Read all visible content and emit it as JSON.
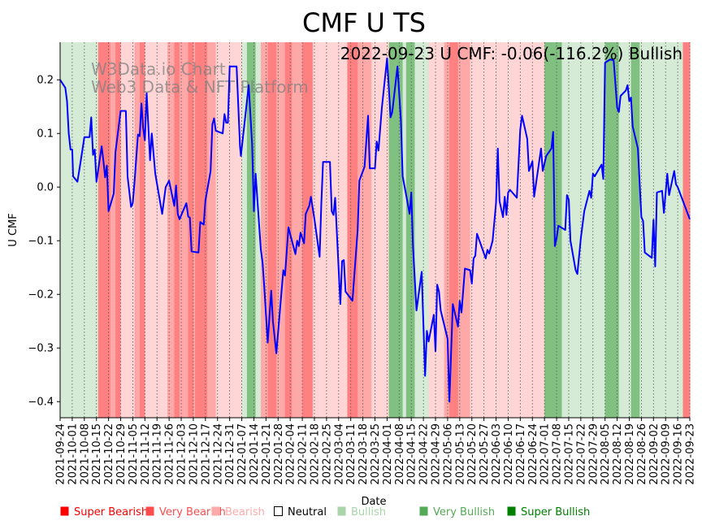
{
  "chart_data": {
    "type": "line",
    "title": "CMF U TS",
    "annotation": "2022-09-23 U CMF: -0.06(-116.2%) Bullish",
    "watermark": [
      "W3Data.io Chart",
      "Web3 Data & NFT Platform"
    ],
    "xlabel": "Date",
    "ylabel": "U CMF",
    "x_start_date": "2021-09-24",
    "x_range_days": [
      0,
      364
    ],
    "ylim": [
      -0.43,
      0.27
    ],
    "y_ticks": [
      0.2,
      0.1,
      0.0,
      -0.1,
      -0.2,
      -0.3,
      -0.4
    ],
    "y_tick_labels": [
      "0.2",
      "0.1",
      "0.0",
      "−0.1",
      "−0.2",
      "−0.3",
      "−0.4"
    ],
    "x_tick_labels": [
      "2021-09-24",
      "2021-10-01",
      "2021-10-08",
      "2021-10-15",
      "2021-10-22",
      "2021-10-29",
      "2021-11-05",
      "2021-11-12",
      "2021-11-19",
      "2021-11-26",
      "2021-12-03",
      "2021-12-10",
      "2021-12-17",
      "2021-12-24",
      "2021-12-31",
      "2022-01-07",
      "2022-01-14",
      "2022-01-21",
      "2022-01-28",
      "2022-02-04",
      "2022-02-11",
      "2022-02-18",
      "2022-02-25",
      "2022-03-04",
      "2022-03-11",
      "2022-03-18",
      "2022-03-25",
      "2022-04-01",
      "2022-04-08",
      "2022-04-15",
      "2022-04-22",
      "2022-04-29",
      "2022-05-06",
      "2022-05-13",
      "2022-05-20",
      "2022-05-27",
      "2022-06-03",
      "2022-06-10",
      "2022-06-17",
      "2022-06-24",
      "2022-07-01",
      "2022-07-08",
      "2022-07-15",
      "2022-07-22",
      "2022-07-29",
      "2022-08-05",
      "2022-08-12",
      "2022-08-19",
      "2022-08-26",
      "2022-09-02",
      "2022-09-09",
      "2022-09-16",
      "2022-09-23"
    ],
    "grid": "vertical dotted",
    "series": [
      {
        "name": "U CMF",
        "color": "#0000ff",
        "points": [
          [
            0,
            0.2
          ],
          [
            3,
            0.185
          ],
          [
            4,
            0.16
          ],
          [
            5,
            0.1
          ],
          [
            6,
            0.07
          ],
          [
            7,
            0.07
          ],
          [
            7.5,
            0.02
          ],
          [
            10,
            0.01
          ],
          [
            12,
            0.05
          ],
          [
            14,
            0.093
          ],
          [
            17,
            0.093
          ],
          [
            18,
            0.13
          ],
          [
            19,
            0.06
          ],
          [
            20,
            0.07
          ],
          [
            21,
            0.01
          ],
          [
            24,
            0.076
          ],
          [
            25,
            0.05
          ],
          [
            26,
            0.018
          ],
          [
            27,
            0.04
          ],
          [
            28,
            -0.045
          ],
          [
            31,
            -0.012
          ],
          [
            32,
            0.065
          ],
          [
            35,
            0.142
          ],
          [
            38,
            0.142
          ],
          [
            39,
            0.02
          ],
          [
            41,
            -0.037
          ],
          [
            42,
            -0.03
          ],
          [
            43,
            0.01
          ],
          [
            45,
            0.098
          ],
          [
            46,
            0.095
          ],
          [
            47,
            0.156
          ],
          [
            48,
            0.11
          ],
          [
            49,
            0.087
          ],
          [
            50,
            0.175
          ],
          [
            52,
            0.05
          ],
          [
            53,
            0.1
          ],
          [
            55,
            0.025
          ],
          [
            59,
            -0.05
          ],
          [
            61,
            0.0
          ],
          [
            63,
            0.012
          ],
          [
            66,
            -0.035
          ],
          [
            67,
            0.003
          ],
          [
            68,
            -0.05
          ],
          [
            69,
            -0.06
          ],
          [
            73,
            -0.03
          ],
          [
            74,
            -0.055
          ],
          [
            75,
            -0.057
          ],
          [
            76,
            -0.12
          ],
          [
            80,
            -0.122
          ],
          [
            81,
            -0.065
          ],
          [
            83,
            -0.07
          ],
          [
            84,
            -0.025
          ],
          [
            87,
            0.03
          ],
          [
            88,
            0.117
          ],
          [
            89,
            0.128
          ],
          [
            90,
            0.105
          ],
          [
            94,
            0.1
          ],
          [
            95,
            0.136
          ],
          [
            96,
            0.12
          ],
          [
            97,
            0.12
          ],
          [
            98,
            0.225
          ],
          [
            102,
            0.225
          ],
          [
            104,
            0.076
          ],
          [
            104.5,
            0.058
          ],
          [
            109,
            0.19
          ],
          [
            111,
            0.08
          ],
          [
            112,
            -0.045
          ],
          [
            113,
            0.025
          ],
          [
            116,
            -0.116
          ],
          [
            117,
            -0.14
          ],
          [
            118,
            -0.185
          ],
          [
            120,
            -0.29
          ],
          [
            122,
            -0.193
          ],
          [
            123,
            -0.25
          ],
          [
            125,
            -0.31
          ],
          [
            129,
            -0.155
          ],
          [
            130,
            -0.165
          ],
          [
            132,
            -0.075
          ],
          [
            136,
            -0.125
          ],
          [
            137,
            -0.1
          ],
          [
            138,
            -0.11
          ],
          [
            139,
            -0.085
          ],
          [
            141,
            -0.105
          ],
          [
            142,
            -0.05
          ],
          [
            144,
            -0.035
          ],
          [
            145,
            -0.018
          ],
          [
            147,
            -0.06
          ],
          [
            150,
            -0.13
          ],
          [
            151,
            -0.03
          ],
          [
            152,
            0.047
          ],
          [
            156,
            0.047
          ],
          [
            157,
            -0.045
          ],
          [
            158,
            -0.052
          ],
          [
            159,
            -0.02
          ],
          [
            162,
            -0.218
          ],
          [
            163,
            -0.138
          ],
          [
            164,
            -0.136
          ],
          [
            165,
            -0.195
          ],
          [
            169,
            -0.212
          ],
          [
            172,
            -0.08
          ],
          [
            173,
            0.012
          ],
          [
            176,
            0.038
          ],
          [
            178,
            0.133
          ],
          [
            179,
            0.035
          ],
          [
            182,
            0.035
          ],
          [
            183,
            0.085
          ],
          [
            184,
            0.068
          ],
          [
            186,
            0.148
          ],
          [
            189,
            0.24
          ],
          [
            191,
            0.13
          ],
          [
            192,
            0.14
          ],
          [
            195,
            0.225
          ],
          [
            197,
            0.125
          ],
          [
            198,
            0.02
          ],
          [
            200,
            -0.014
          ],
          [
            202,
            -0.05
          ],
          [
            203,
            -0.01
          ],
          [
            204,
            -0.11
          ],
          [
            206,
            -0.23
          ],
          [
            209,
            -0.158
          ],
          [
            211,
            -0.352
          ],
          [
            212,
            -0.268
          ],
          [
            213,
            -0.288
          ],
          [
            216,
            -0.238
          ],
          [
            217,
            -0.306
          ],
          [
            218,
            -0.182
          ],
          [
            219,
            -0.195
          ],
          [
            220,
            -0.23
          ],
          [
            224,
            -0.283
          ],
          [
            225,
            -0.4
          ],
          [
            227,
            -0.218
          ],
          [
            230,
            -0.26
          ],
          [
            231,
            -0.212
          ],
          [
            232,
            -0.234
          ],
          [
            234,
            -0.152
          ],
          [
            237,
            -0.155
          ],
          [
            238,
            -0.18
          ],
          [
            239,
            -0.133
          ],
          [
            240,
            -0.128
          ],
          [
            241,
            -0.087
          ],
          [
            246,
            -0.133
          ],
          [
            247,
            -0.117
          ],
          [
            248,
            -0.124
          ],
          [
            250,
            -0.1
          ],
          [
            252,
            -0.03
          ],
          [
            253,
            0.072
          ],
          [
            254,
            -0.026
          ],
          [
            256,
            -0.056
          ],
          [
            257,
            -0.018
          ],
          [
            258,
            -0.052
          ],
          [
            259,
            -0.01
          ],
          [
            260,
            -0.005
          ],
          [
            264,
            -0.02
          ],
          [
            266,
            0.107
          ],
          [
            267,
            0.133
          ],
          [
            270,
            0.09
          ],
          [
            271,
            0.03
          ],
          [
            273,
            0.048
          ],
          [
            274,
            -0.018
          ],
          [
            278,
            0.072
          ],
          [
            279,
            0.03
          ],
          [
            281,
            0.058
          ],
          [
            284,
            0.072
          ],
          [
            285,
            0.103
          ],
          [
            286,
            -0.11
          ],
          [
            287,
            -0.095
          ],
          [
            288,
            -0.072
          ],
          [
            292,
            -0.08
          ],
          [
            293,
            -0.015
          ],
          [
            294,
            -0.023
          ],
          [
            295,
            -0.1
          ],
          [
            298,
            -0.155
          ],
          [
            299,
            -0.162
          ],
          [
            301,
            -0.095
          ],
          [
            303,
            -0.045
          ],
          [
            306,
            -0.007
          ],
          [
            307,
            -0.02
          ],
          [
            308,
            0.025
          ],
          [
            309,
            0.02
          ],
          [
            313,
            0.042
          ],
          [
            314,
            0.015
          ],
          [
            315,
            0.232
          ],
          [
            318,
            0.238
          ],
          [
            320,
            0.236
          ],
          [
            322,
            0.148
          ],
          [
            323,
            0.14
          ],
          [
            324,
            0.17
          ],
          [
            327,
            0.18
          ],
          [
            328,
            0.19
          ],
          [
            329,
            0.16
          ],
          [
            330,
            0.167
          ],
          [
            331,
            0.113
          ],
          [
            334,
            0.072
          ],
          [
            336,
            -0.056
          ],
          [
            337,
            -0.063
          ],
          [
            338,
            -0.122
          ],
          [
            342,
            -0.132
          ],
          [
            343,
            -0.061
          ],
          [
            344,
            -0.148
          ],
          [
            345,
            -0.01
          ],
          [
            348,
            -0.007
          ],
          [
            349,
            -0.048
          ],
          [
            351,
            0.025
          ],
          [
            352,
            -0.015
          ],
          [
            354,
            0.015
          ],
          [
            355,
            0.03
          ],
          [
            356,
            0.005
          ],
          [
            357,
            0.0
          ],
          [
            364,
            -0.06
          ]
        ]
      }
    ],
    "bands": [
      [
        0,
        22,
        "bullish"
      ],
      [
        22,
        29,
        "super_bearish"
      ],
      [
        29,
        32,
        "very_bearish"
      ],
      [
        32,
        35,
        "super_bearish"
      ],
      [
        35,
        43,
        "bearish"
      ],
      [
        43,
        46,
        "very_bearish"
      ],
      [
        46,
        49,
        "super_bearish"
      ],
      [
        49,
        62,
        "bearish"
      ],
      [
        62,
        66,
        "very_bearish"
      ],
      [
        66,
        69,
        "super_bearish"
      ],
      [
        69,
        74,
        "very_bearish"
      ],
      [
        74,
        77,
        "super_bearish"
      ],
      [
        77,
        78,
        "very_bearish"
      ],
      [
        78,
        85,
        "super_bearish"
      ],
      [
        85,
        90,
        "very_bearish"
      ],
      [
        90,
        105,
        "bearish"
      ],
      [
        105,
        108,
        "bullish"
      ],
      [
        108,
        113,
        "very_bullish"
      ],
      [
        113,
        116,
        "bullish"
      ],
      [
        116,
        120,
        "very_bearish"
      ],
      [
        120,
        125,
        "super_bearish"
      ],
      [
        125,
        130,
        "very_bearish"
      ],
      [
        130,
        134,
        "super_bearish"
      ],
      [
        134,
        140,
        "very_bearish"
      ],
      [
        140,
        146,
        "super_bearish"
      ],
      [
        146,
        166,
        "bearish"
      ],
      [
        166,
        172,
        "super_bearish"
      ],
      [
        172,
        180,
        "very_bearish"
      ],
      [
        180,
        190,
        "bearish"
      ],
      [
        190,
        198,
        "very_bullish"
      ],
      [
        198,
        200,
        "bullish"
      ],
      [
        200,
        205,
        "very_bullish"
      ],
      [
        205,
        213,
        "bullish"
      ],
      [
        213,
        222,
        "bearish"
      ],
      [
        222,
        225,
        "very_bearish"
      ],
      [
        225,
        230,
        "super_bearish"
      ],
      [
        230,
        237,
        "very_bearish"
      ],
      [
        237,
        280,
        "bearish"
      ],
      [
        280,
        290,
        "very_bullish"
      ],
      [
        290,
        315,
        "bullish"
      ],
      [
        315,
        323,
        "very_bullish"
      ],
      [
        323,
        330,
        "bullish"
      ],
      [
        330,
        335,
        "very_bullish"
      ],
      [
        335,
        360,
        "bullish"
      ],
      [
        360,
        364,
        "super_bearish"
      ]
    ],
    "band_colors": {
      "super_bearish": "#ff8080",
      "very_bearish": "#ffa8a8",
      "bearish": "#ffd5d5",
      "bullish": "#d5ebd5",
      "very_bullish": "#80c080",
      "super_bullish": "#60b060"
    },
    "legend": [
      {
        "label": "Super Bearish",
        "color": "#ff0000",
        "hollow": false
      },
      {
        "label": "Very Bearish",
        "color": "#ff4d4d",
        "hollow": false
      },
      {
        "label": "Bearish",
        "color": "#ffaaaa",
        "hollow": false
      },
      {
        "label": "Neutral",
        "color": "#000000",
        "hollow": true
      },
      {
        "label": "Bullish",
        "color": "#aad4aa",
        "hollow": false
      },
      {
        "label": "Very Bullish",
        "color": "#55aa55",
        "hollow": false
      },
      {
        "label": "Super Bullish",
        "color": "#008000",
        "hollow": false
      }
    ],
    "legend_placement": "bottom"
  }
}
